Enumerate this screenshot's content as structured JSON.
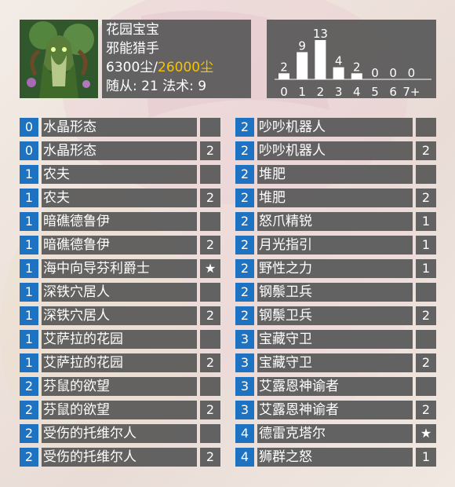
{
  "deck": {
    "name": "花园宝宝",
    "class": "邪能猎手",
    "dust_owned": "6300尘",
    "dust_sep": "/",
    "dust_total": "26000尘",
    "counts": "随从: 21 法术: 9"
  },
  "chart_data": {
    "type": "bar",
    "categories": [
      "0",
      "1",
      "2",
      "3",
      "4",
      "5",
      "6",
      "7+"
    ],
    "values": [
      2,
      9,
      13,
      4,
      2,
      0,
      0,
      0
    ],
    "title": "",
    "xlabel": "",
    "ylabel": "",
    "color": "#ffffff"
  },
  "cards_left": [
    {
      "cost": "0",
      "name": "水晶形态",
      "count": "",
      "rarity": "rare"
    },
    {
      "cost": "0",
      "name": "水晶形态",
      "count": "2",
      "rarity": "rare"
    },
    {
      "cost": "1",
      "name": "农夫",
      "count": "",
      "rarity": "common"
    },
    {
      "cost": "1",
      "name": "农夫",
      "count": "2",
      "rarity": "common"
    },
    {
      "cost": "1",
      "name": "暗礁德鲁伊",
      "count": "",
      "rarity": "common"
    },
    {
      "cost": "1",
      "name": "暗礁德鲁伊",
      "count": "2",
      "rarity": "common"
    },
    {
      "cost": "1",
      "name": "海中向导芬利爵士",
      "count": "★",
      "rarity": "legendary"
    },
    {
      "cost": "1",
      "name": "深铁穴居人",
      "count": "",
      "rarity": "rare"
    },
    {
      "cost": "1",
      "name": "深铁穴居人",
      "count": "2",
      "rarity": "rare"
    },
    {
      "cost": "1",
      "name": "艾萨拉的花园",
      "count": "",
      "rarity": "common"
    },
    {
      "cost": "1",
      "name": "艾萨拉的花园",
      "count": "2",
      "rarity": "common"
    },
    {
      "cost": "2",
      "name": "芬鼠的欲望",
      "count": "",
      "rarity": "rare"
    },
    {
      "cost": "2",
      "name": "芬鼠的欲望",
      "count": "2",
      "rarity": "rare"
    },
    {
      "cost": "2",
      "name": "受伤的托维尔人",
      "count": "",
      "rarity": "common"
    },
    {
      "cost": "2",
      "name": "受伤的托维尔人",
      "count": "2",
      "rarity": "common"
    }
  ],
  "cards_right": [
    {
      "cost": "2",
      "name": "吵吵机器人",
      "count": "",
      "rarity": "common"
    },
    {
      "cost": "2",
      "name": "吵吵机器人",
      "count": "2",
      "rarity": "common"
    },
    {
      "cost": "2",
      "name": "堆肥",
      "count": "",
      "rarity": "epic"
    },
    {
      "cost": "2",
      "name": "堆肥",
      "count": "2",
      "rarity": "epic"
    },
    {
      "cost": "2",
      "name": "怒爪精锐",
      "count": "1",
      "rarity": "common"
    },
    {
      "cost": "2",
      "name": "月光指引",
      "count": "1",
      "rarity": "rare"
    },
    {
      "cost": "2",
      "name": "野性之力",
      "count": "1",
      "rarity": "common"
    },
    {
      "cost": "2",
      "name": "钢鬃卫兵",
      "count": "",
      "rarity": "rare"
    },
    {
      "cost": "2",
      "name": "钢鬃卫兵",
      "count": "2",
      "rarity": "rare"
    },
    {
      "cost": "3",
      "name": "宝藏守卫",
      "count": "",
      "rarity": "common"
    },
    {
      "cost": "3",
      "name": "宝藏守卫",
      "count": "2",
      "rarity": "common"
    },
    {
      "cost": "3",
      "name": "艾露恩神谕者",
      "count": "",
      "rarity": "epic"
    },
    {
      "cost": "3",
      "name": "艾露恩神谕者",
      "count": "2",
      "rarity": "epic"
    },
    {
      "cost": "4",
      "name": "德雷克塔尔",
      "count": "★",
      "rarity": "legendary"
    },
    {
      "cost": "4",
      "name": "狮群之怒",
      "count": "1",
      "rarity": "common"
    }
  ]
}
